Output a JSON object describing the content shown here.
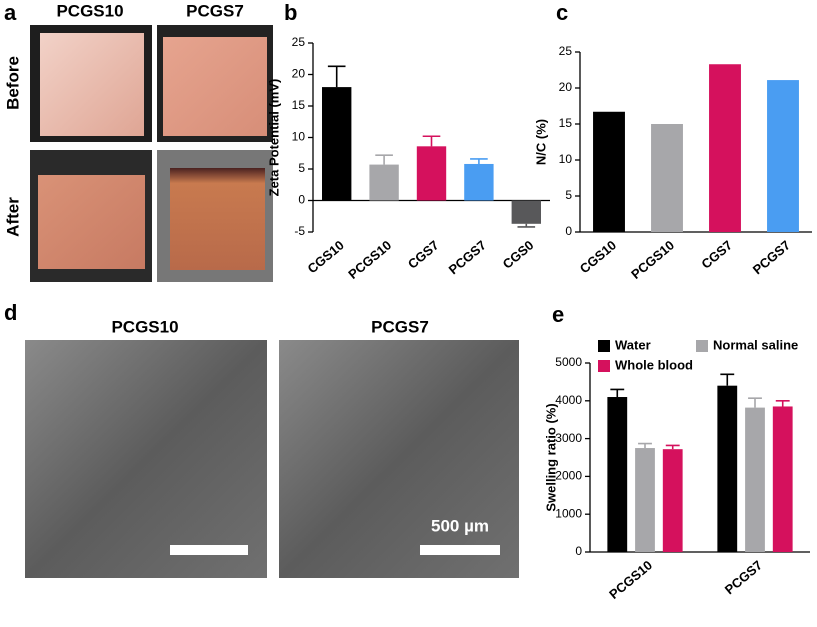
{
  "panel_labels": [
    "a",
    "b",
    "c",
    "d",
    "e"
  ],
  "photo_panel": {
    "columns": [
      "PCGS10",
      "PCGS7"
    ],
    "rows": [
      "Before",
      "After"
    ]
  },
  "sem_panel": {
    "columns": [
      "PCGS10",
      "PCGS7"
    ],
    "scale_bar": "500 µm"
  },
  "chart_data": [
    {
      "type": "bar",
      "y_label": "Zeta Potential (mV)",
      "categories": [
        "CGS10",
        "PCGS10",
        "CGS7",
        "PCGS7",
        "CGS0"
      ],
      "values": [
        18,
        5.7,
        8.6,
        5.8,
        -3.7
      ],
      "errors": [
        3.3,
        1.5,
        1.6,
        0.8,
        0.5
      ],
      "colors": [
        "#000000",
        "#a7a7aa",
        "#d5115d",
        "#4a9df2",
        "#58585a"
      ],
      "ylim": [
        -5,
        25
      ],
      "yticks": [
        -5,
        0,
        5,
        10,
        15,
        20,
        25
      ]
    },
    {
      "type": "bar",
      "y_label": "N/C (%)",
      "categories": [
        "CGS10",
        "PCGS10",
        "CGS7",
        "PCGS7"
      ],
      "values": [
        16.7,
        15.0,
        23.3,
        21.1
      ],
      "colors": [
        "#000000",
        "#a7a7aa",
        "#d5115d",
        "#4a9df2"
      ],
      "ylim": [
        0,
        25
      ],
      "yticks": [
        0,
        5,
        10,
        15,
        20,
        25
      ]
    },
    {
      "type": "bar",
      "y_label": "Swelling ratio (%)",
      "categories": [
        "PCGS10",
        "PCGS7"
      ],
      "series": [
        {
          "name": "Water",
          "color": "#000000",
          "values": [
            4100,
            4400
          ],
          "errors": [
            200,
            300
          ]
        },
        {
          "name": "Normal saline",
          "color": "#a7a7aa",
          "values": [
            2750,
            3820
          ],
          "errors": [
            120,
            250
          ]
        },
        {
          "name": "Whole blood",
          "color": "#d5115d",
          "values": [
            2720,
            3850
          ],
          "errors": [
            100,
            150
          ]
        }
      ],
      "ylim": [
        0,
        5000
      ],
      "yticks": [
        0,
        1000,
        2000,
        3000,
        4000,
        5000
      ]
    }
  ]
}
